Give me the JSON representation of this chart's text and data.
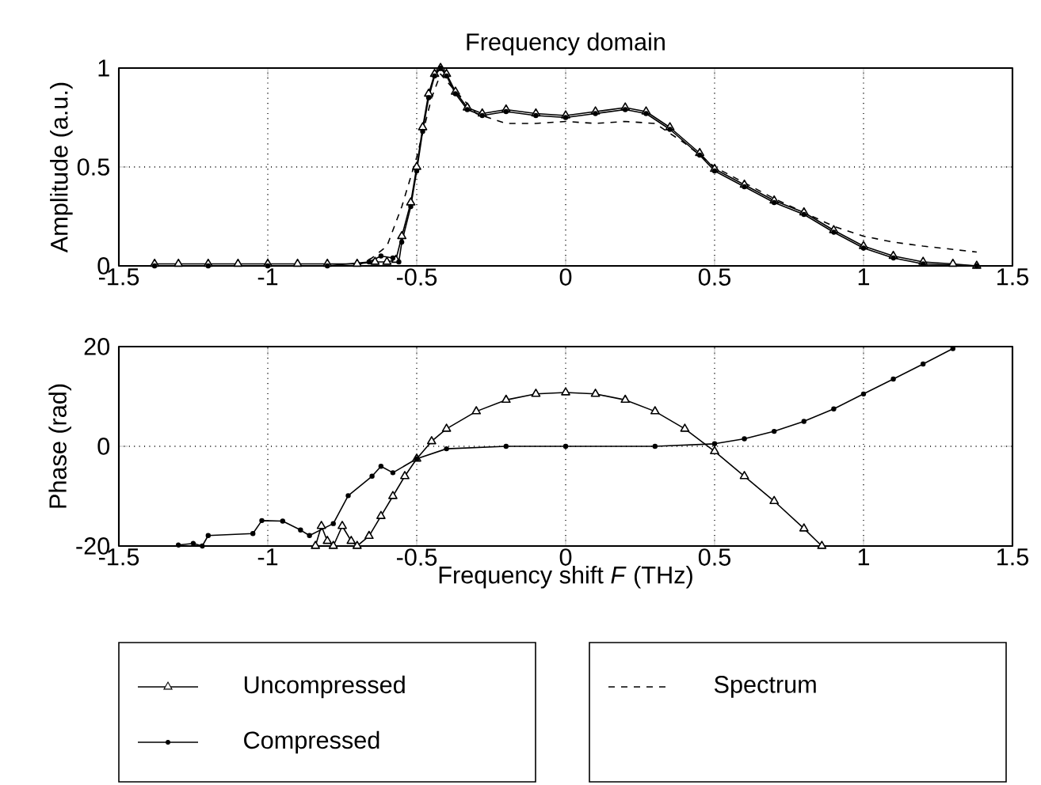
{
  "chart_data": [
    {
      "type": "line",
      "title": "Frequency domain",
      "ylabel": "Amplitude (a.u.)",
      "xlim": [
        -1.5,
        1.5
      ],
      "xticks": [
        -1.5,
        -1,
        -0.5,
        0,
        0.5,
        1,
        1.5
      ],
      "ylim": [
        0,
        1
      ],
      "yticks": [
        0,
        0.5,
        1
      ],
      "grid": true,
      "legend": "bottom right",
      "series": [
        {
          "color": "#000000",
          "marker": "triangle",
          "line_style": "solid",
          "x": [
            -1.38,
            -1.3,
            -1.2,
            -1.1,
            -1.0,
            -0.9,
            -0.8,
            -0.7,
            -0.64,
            -0.6,
            -0.57,
            -0.55,
            -0.52,
            -0.5,
            -0.48,
            -0.46,
            -0.44,
            -0.42,
            -0.4,
            -0.37,
            -0.33,
            -0.28,
            -0.2,
            -0.1,
            0,
            0.1,
            0.2,
            0.27,
            0.35,
            0.45,
            0.5,
            0.6,
            0.7,
            0.8,
            0.9,
            1.0,
            1.1,
            1.2,
            1.3,
            1.38
          ],
          "values": [
            0.01,
            0.01,
            0.01,
            0.01,
            0.01,
            0.01,
            0.01,
            0.01,
            0.02,
            0.02,
            0.03,
            0.15,
            0.32,
            0.5,
            0.7,
            0.87,
            0.97,
            1.0,
            0.97,
            0.88,
            0.8,
            0.77,
            0.79,
            0.77,
            0.76,
            0.78,
            0.8,
            0.78,
            0.7,
            0.57,
            0.49,
            0.41,
            0.33,
            0.27,
            0.18,
            0.1,
            0.05,
            0.02,
            0.01,
            0.0
          ]
        },
        {
          "color": "#000000",
          "marker": "circle",
          "line_style": "solid",
          "x": [
            -1.38,
            -1.2,
            -1.0,
            -0.8,
            -0.66,
            -0.62,
            -0.58,
            -0.56,
            -0.55,
            -0.52,
            -0.5,
            -0.48,
            -0.46,
            -0.44,
            -0.42,
            -0.4,
            -0.37,
            -0.33,
            -0.28,
            -0.2,
            -0.1,
            0,
            0.1,
            0.2,
            0.27,
            0.35,
            0.45,
            0.5,
            0.6,
            0.7,
            0.8,
            0.9,
            1.0,
            1.1,
            1.2,
            1.38
          ],
          "values": [
            0.0,
            0.0,
            0.0,
            0.0,
            0.02,
            0.05,
            0.04,
            0.02,
            0.12,
            0.3,
            0.48,
            0.68,
            0.85,
            0.96,
            1.0,
            0.96,
            0.87,
            0.79,
            0.76,
            0.78,
            0.76,
            0.75,
            0.77,
            0.79,
            0.77,
            0.69,
            0.56,
            0.48,
            0.4,
            0.32,
            0.26,
            0.17,
            0.09,
            0.04,
            0.01,
            0.0
          ]
        },
        {
          "name": "Spectrum",
          "color": "#000000",
          "marker": "none",
          "line_style": "dashed",
          "x": [
            -1.38,
            -0.7,
            -0.65,
            -0.6,
            -0.55,
            -0.5,
            -0.45,
            -0.42,
            -0.38,
            -0.3,
            -0.2,
            -0.1,
            0,
            0.1,
            0.2,
            0.3,
            0.4,
            0.5,
            0.6,
            0.7,
            0.8,
            0.9,
            1.0,
            1.1,
            1.2,
            1.38
          ],
          "values": [
            0.0,
            0.0,
            0.04,
            0.1,
            0.3,
            0.55,
            0.85,
            0.97,
            0.9,
            0.77,
            0.72,
            0.72,
            0.73,
            0.72,
            0.73,
            0.72,
            0.62,
            0.5,
            0.42,
            0.34,
            0.27,
            0.2,
            0.15,
            0.12,
            0.1,
            0.07
          ]
        }
      ]
    },
    {
      "type": "line",
      "xlabel": "Frequency shift *F* (THz)",
      "ylabel": "Phase (rad)",
      "xlim": [
        -1.5,
        1.5
      ],
      "xticks": [
        -1.5,
        -1,
        -0.5,
        0,
        0.5,
        1,
        1.5
      ],
      "ylim": [
        -20,
        20
      ],
      "yticks": [
        -20,
        0,
        20
      ],
      "grid": true,
      "legend": "bottom left",
      "series": [
        {
          "name": "Uncompressed",
          "color": "#000000",
          "marker": "triangle",
          "line_style": "solid",
          "x": [
            -0.84,
            -0.82,
            -0.8,
            -0.78,
            -0.75,
            -0.72,
            -0.7,
            -0.66,
            -0.62,
            -0.58,
            -0.54,
            -0.5,
            -0.45,
            -0.4,
            -0.3,
            -0.2,
            -0.1,
            0,
            0.1,
            0.2,
            0.3,
            0.4,
            0.5,
            0.6,
            0.7,
            0.8,
            0.86
          ],
          "values": [
            -20,
            -16,
            -19,
            -20,
            -16,
            -19,
            -20,
            -18,
            -14,
            -10,
            -6,
            -2.5,
            1,
            3.5,
            7,
            9.3,
            10.5,
            10.8,
            10.5,
            9.3,
            7,
            3.5,
            -1,
            -6,
            -11,
            -16.5,
            -20
          ]
        },
        {
          "name": "Compressed",
          "color": "#000000",
          "marker": "circle",
          "line_style": "solid",
          "x": [
            -1.3,
            -1.25,
            -1.22,
            -1.2,
            -1.05,
            -1.02,
            -0.95,
            -0.89,
            -0.86,
            -0.78,
            -0.73,
            -0.65,
            -0.62,
            -0.58,
            -0.5,
            -0.4,
            -0.2,
            0,
            0.3,
            0.5,
            0.6,
            0.7,
            0.8,
            0.9,
            1.0,
            1.1,
            1.2,
            1.3
          ],
          "values": [
            -19.8,
            -19.5,
            -20,
            -17.9,
            -17.5,
            -14.9,
            -15,
            -16.8,
            -17.9,
            -15.5,
            -9.9,
            -6,
            -4,
            -5.3,
            -2.5,
            -0.5,
            0,
            0,
            0,
            0.5,
            1.5,
            3,
            5,
            7.5,
            10.5,
            13.5,
            16.5,
            19.6
          ]
        }
      ]
    }
  ]
}
